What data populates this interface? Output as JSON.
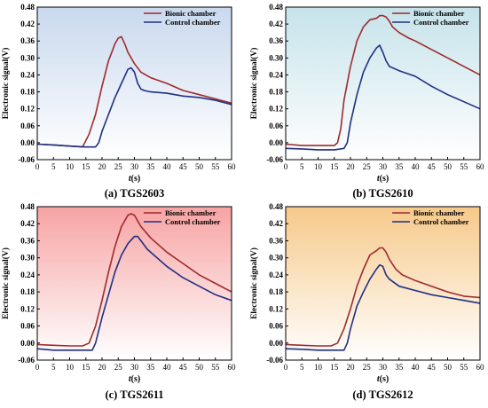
{
  "chart_data": [
    {
      "type": "line",
      "caption": "(a) TGS2603",
      "xlabel_italic": "t",
      "xlabel_unit": "(s)",
      "ylabel": "Electronic signal(V)",
      "xlim": [
        0,
        60
      ],
      "ylim": [
        -0.06,
        0.48
      ],
      "x_ticks": [
        0,
        5,
        10,
        15,
        20,
        25,
        30,
        35,
        40,
        45,
        50,
        55,
        60
      ],
      "y_ticks": [
        "-0.06",
        "0.00",
        "0.06",
        "0.12",
        "0.18",
        "0.24",
        "0.30",
        "0.36",
        "0.42",
        "0.48"
      ],
      "background": {
        "top": "#c9d9ee",
        "bottom": "#ffffff"
      },
      "legend_position": "top-right",
      "series": [
        {
          "name": "Bionic chamber",
          "color": "#9e2a2b",
          "x": [
            0,
            5,
            10,
            14,
            16,
            18,
            20,
            22,
            24,
            25,
            26,
            27,
            28,
            30,
            32,
            35,
            40,
            45,
            50,
            55,
            60
          ],
          "y": [
            -0.005,
            -0.008,
            -0.012,
            -0.015,
            0.03,
            0.1,
            0.2,
            0.29,
            0.35,
            0.37,
            0.375,
            0.35,
            0.32,
            0.28,
            0.25,
            0.23,
            0.21,
            0.185,
            0.17,
            0.155,
            0.14
          ]
        },
        {
          "name": "Control chamber",
          "color": "#1f2f84",
          "x": [
            0,
            5,
            10,
            15,
            18,
            19,
            20,
            22,
            24,
            26,
            28,
            29,
            30,
            31,
            32,
            33,
            35,
            40,
            45,
            50,
            55,
            60
          ],
          "y": [
            -0.005,
            -0.008,
            -0.012,
            -0.015,
            -0.015,
            0.0,
            0.04,
            0.1,
            0.16,
            0.21,
            0.26,
            0.265,
            0.25,
            0.21,
            0.19,
            0.185,
            0.18,
            0.175,
            0.165,
            0.16,
            0.15,
            0.135
          ]
        }
      ]
    },
    {
      "type": "line",
      "caption": "(b) TGS2610",
      "xlabel_italic": "t",
      "xlabel_unit": "(s)",
      "ylabel": "Electronic signal(V)",
      "xlim": [
        0,
        60
      ],
      "ylim": [
        -0.06,
        0.48
      ],
      "x_ticks": [
        0,
        5,
        10,
        15,
        20,
        25,
        30,
        35,
        40,
        45,
        50,
        55,
        60
      ],
      "y_ticks": [
        "-0.06",
        "0.00",
        "0.06",
        "0.12",
        "0.18",
        "0.24",
        "0.30",
        "0.36",
        "0.42",
        "0.48"
      ],
      "background": {
        "top": "#c6e3ea",
        "bottom": "#ffffff"
      },
      "legend_position": "top-right",
      "series": [
        {
          "name": "Bionic chamber",
          "color": "#9e2a2b",
          "x": [
            0,
            5,
            10,
            15,
            16,
            17,
            18,
            20,
            22,
            24,
            26,
            28,
            29,
            30,
            31,
            32,
            33,
            35,
            38,
            40,
            45,
            50,
            55,
            60
          ],
          "y": [
            -0.005,
            -0.01,
            -0.01,
            -0.01,
            0.0,
            0.05,
            0.15,
            0.27,
            0.36,
            0.41,
            0.435,
            0.44,
            0.45,
            0.45,
            0.445,
            0.43,
            0.41,
            0.39,
            0.37,
            0.36,
            0.33,
            0.3,
            0.27,
            0.24
          ]
        },
        {
          "name": "Control chamber",
          "color": "#1f2f84",
          "x": [
            0,
            5,
            10,
            15,
            18,
            19,
            20,
            22,
            24,
            26,
            28,
            29,
            30,
            31,
            32,
            35,
            40,
            45,
            50,
            55,
            60
          ],
          "y": [
            -0.02,
            -0.022,
            -0.025,
            -0.025,
            -0.02,
            0.0,
            0.07,
            0.17,
            0.25,
            0.3,
            0.335,
            0.345,
            0.32,
            0.29,
            0.27,
            0.255,
            0.235,
            0.2,
            0.17,
            0.145,
            0.12
          ]
        }
      ]
    },
    {
      "type": "line",
      "caption": "(c) TGS2611",
      "xlabel_italic": "t",
      "xlabel_unit": "(s)",
      "ylabel": "Electronic signal(V)",
      "xlim": [
        0,
        60
      ],
      "ylim": [
        -0.06,
        0.48
      ],
      "x_ticks": [
        0,
        5,
        10,
        15,
        20,
        25,
        30,
        35,
        40,
        45,
        50,
        55,
        60
      ],
      "y_ticks": [
        "-0.06",
        "0.00",
        "0.06",
        "0.12",
        "0.18",
        "0.24",
        "0.30",
        "0.36",
        "0.42",
        "0.48"
      ],
      "background": {
        "top": "#f7a3a3",
        "bottom": "#ffffff"
      },
      "legend_position": "top-right",
      "series": [
        {
          "name": "Bionic chamber",
          "color": "#9e2a2b",
          "x": [
            0,
            5,
            10,
            14,
            16,
            18,
            20,
            22,
            24,
            26,
            28,
            29,
            30,
            32,
            35,
            40,
            45,
            50,
            55,
            60
          ],
          "y": [
            -0.005,
            -0.008,
            -0.01,
            -0.01,
            0.0,
            0.06,
            0.15,
            0.25,
            0.34,
            0.41,
            0.45,
            0.455,
            0.45,
            0.41,
            0.37,
            0.32,
            0.28,
            0.24,
            0.21,
            0.18
          ]
        },
        {
          "name": "Control chamber",
          "color": "#1f2f84",
          "x": [
            0,
            5,
            10,
            15,
            17,
            18,
            20,
            22,
            24,
            26,
            28,
            30,
            31,
            32,
            34,
            36,
            40,
            45,
            50,
            55,
            60
          ],
          "y": [
            -0.02,
            -0.025,
            -0.025,
            -0.025,
            -0.025,
            0.0,
            0.09,
            0.17,
            0.25,
            0.31,
            0.35,
            0.375,
            0.375,
            0.36,
            0.33,
            0.31,
            0.27,
            0.23,
            0.2,
            0.17,
            0.15
          ]
        }
      ]
    },
    {
      "type": "line",
      "caption": "(d) TGS2612",
      "xlabel_italic": "t",
      "xlabel_unit": "(s)",
      "ylabel": "Electronic signal(V)",
      "xlim": [
        0,
        60
      ],
      "ylim": [
        -0.06,
        0.48
      ],
      "x_ticks": [
        0,
        5,
        10,
        15,
        20,
        25,
        30,
        35,
        40,
        45,
        50,
        55,
        60
      ],
      "y_ticks": [
        "-0.06",
        "0.00",
        "0.06",
        "0.12",
        "0.18",
        "0.24",
        "0.30",
        "0.36",
        "0.42",
        "0.48"
      ],
      "background": {
        "top": "#f6c98a",
        "bottom": "#ffffff"
      },
      "legend_position": "top-right",
      "series": [
        {
          "name": "Bionic chamber",
          "color": "#9e2a2b",
          "x": [
            0,
            5,
            10,
            14,
            16,
            18,
            20,
            22,
            24,
            26,
            28,
            29,
            30,
            31,
            32,
            34,
            36,
            40,
            45,
            50,
            55,
            60
          ],
          "y": [
            -0.005,
            -0.008,
            -0.01,
            -0.01,
            0.0,
            0.05,
            0.12,
            0.2,
            0.26,
            0.31,
            0.325,
            0.335,
            0.335,
            0.32,
            0.295,
            0.26,
            0.24,
            0.22,
            0.2,
            0.18,
            0.165,
            0.16
          ]
        },
        {
          "name": "Control chamber",
          "color": "#1f2f84",
          "x": [
            0,
            5,
            10,
            15,
            18,
            19,
            20,
            22,
            24,
            26,
            28,
            29,
            30,
            31,
            32,
            35,
            40,
            45,
            50,
            55,
            60
          ],
          "y": [
            -0.02,
            -0.022,
            -0.025,
            -0.025,
            -0.025,
            0.0,
            0.05,
            0.13,
            0.18,
            0.225,
            0.26,
            0.275,
            0.27,
            0.24,
            0.225,
            0.2,
            0.185,
            0.17,
            0.16,
            0.15,
            0.14
          ]
        }
      ]
    }
  ]
}
